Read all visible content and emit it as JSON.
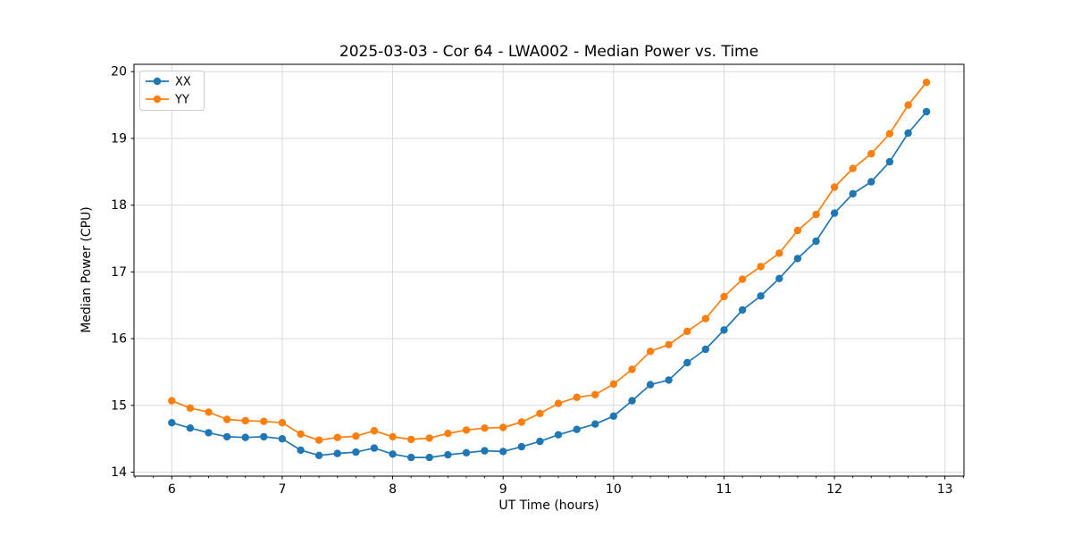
{
  "chart_data": {
    "type": "line",
    "title": "2025-03-03 - Cor 64 - LWA002 - Median Power vs. Time",
    "xlabel": "UT Time (hours)",
    "ylabel": "Median Power (CPU)",
    "xlim": [
      5.658,
      13.172
    ],
    "ylim": [
      13.94,
      20.11
    ],
    "x_ticks": [
      6,
      7,
      8,
      9,
      10,
      11,
      12,
      13
    ],
    "y_ticks": [
      14,
      15,
      16,
      17,
      18,
      19,
      20
    ],
    "x_minor_step": 0.1666667,
    "grid": true,
    "grid_color": "#d9d9d9",
    "axis_color": "#000000",
    "background_color": "#ffffff",
    "legend_position": "upper left",
    "x": [
      6.0,
      6.167,
      6.333,
      6.5,
      6.667,
      6.833,
      7.0,
      7.167,
      7.333,
      7.5,
      7.667,
      7.833,
      8.0,
      8.167,
      8.333,
      8.5,
      8.667,
      8.833,
      9.0,
      9.167,
      9.333,
      9.5,
      9.667,
      9.833,
      10.0,
      10.167,
      10.333,
      10.5,
      10.667,
      10.833,
      11.0,
      11.167,
      11.333,
      11.5,
      11.667,
      11.833,
      12.0,
      12.167,
      12.333,
      12.5,
      12.667,
      12.833
    ],
    "series": [
      {
        "name": "XX",
        "color": "#1f77b4",
        "values": [
          14.74,
          14.66,
          14.59,
          14.53,
          14.52,
          14.53,
          14.5,
          14.33,
          14.25,
          14.28,
          14.3,
          14.36,
          14.27,
          14.22,
          14.22,
          14.26,
          14.29,
          14.32,
          14.31,
          14.38,
          14.46,
          14.56,
          14.64,
          14.72,
          14.84,
          15.07,
          15.31,
          15.38,
          15.64,
          15.84,
          16.13,
          16.43,
          16.64,
          16.9,
          17.2,
          17.46,
          17.88,
          18.17,
          18.35,
          18.65,
          19.08,
          19.4
        ]
      },
      {
        "name": "YY",
        "color": "#ff7f0e",
        "values": [
          15.07,
          14.96,
          14.9,
          14.79,
          14.77,
          14.76,
          14.74,
          14.57,
          14.48,
          14.52,
          14.54,
          14.62,
          14.53,
          14.49,
          14.51,
          14.58,
          14.63,
          14.66,
          14.67,
          14.75,
          14.88,
          15.03,
          15.12,
          15.16,
          15.32,
          15.54,
          15.81,
          15.91,
          16.11,
          16.3,
          16.63,
          16.89,
          17.08,
          17.28,
          17.62,
          17.86,
          18.27,
          18.55,
          18.77,
          19.07,
          19.5,
          19.84
        ]
      }
    ]
  }
}
